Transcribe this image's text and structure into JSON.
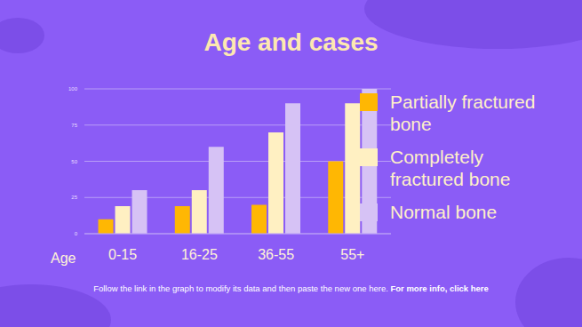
{
  "chart_data": {
    "type": "bar",
    "title": "Age and cases",
    "xlabel": "Age",
    "categories": [
      "0-15",
      "16-25",
      "36-55",
      "55+"
    ],
    "series": [
      {
        "name": "Partially fractured bone",
        "color": "#ffb703",
        "values": [
          10,
          19,
          20,
          50
        ]
      },
      {
        "name": "Completely fractured bone",
        "color": "#fff0c2",
        "values": [
          19,
          30,
          70,
          90
        ]
      },
      {
        "name": "Normal bone",
        "color": "#d6c2f5",
        "values": [
          30,
          60,
          90,
          100
        ]
      }
    ],
    "ylim": [
      0,
      100
    ],
    "yticks": [
      0,
      25,
      50,
      75,
      100
    ],
    "grid": true,
    "legend": "right",
    "annotations": [
      "Follow the link in the graph to modify its data and then paste the new one here.",
      "For more info, click here"
    ]
  }
}
